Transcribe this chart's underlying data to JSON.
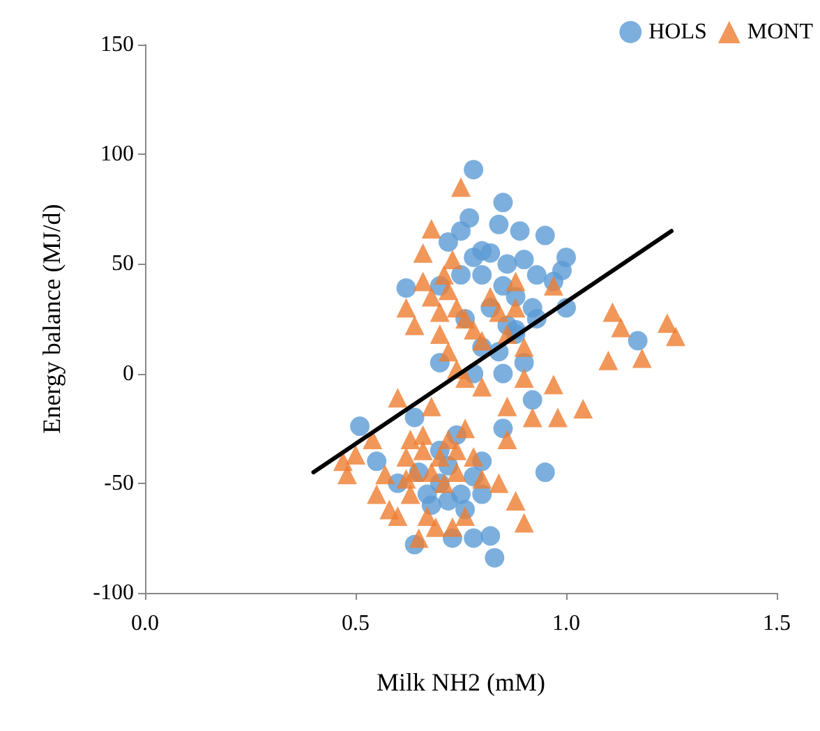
{
  "chart_data": {
    "type": "scatter",
    "xlabel": "Milk NH2 (mM)",
    "ylabel": "Energy balance (MJ/d)",
    "xlim": [
      0,
      1.5
    ],
    "xticks": [
      {
        "value": 0,
        "label": "0.0"
      },
      {
        "value": 0.5,
        "label": "0.5"
      },
      {
        "value": 1,
        "label": "1.0"
      },
      {
        "value": 1.5,
        "label": "1.5"
      }
    ],
    "ylim": [
      -100,
      150
    ],
    "yticks": [
      -100,
      -50,
      0,
      50,
      100,
      150
    ],
    "grid": false,
    "legend": "top right",
    "series": [
      {
        "name": "HOLS",
        "color": "#5b9bd5",
        "marker": "circle",
        "x": [
          0.78,
          0.85,
          0.77,
          0.84,
          0.75,
          0.89,
          0.95,
          0.72,
          0.8,
          0.82,
          0.78,
          0.86,
          0.9,
          1.0,
          0.99,
          0.93,
          0.75,
          0.8,
          0.85,
          0.97,
          0.62,
          0.7,
          0.88,
          0.92,
          1.0,
          0.82,
          0.76,
          0.93,
          0.86,
          0.88,
          1.17,
          0.8,
          0.9,
          0.85,
          0.7,
          0.85,
          0.92,
          0.95,
          0.51,
          0.64,
          0.8,
          0.78,
          0.7,
          0.75,
          0.72,
          0.8,
          0.76,
          0.68,
          0.73,
          0.78,
          0.82,
          0.64,
          0.83,
          0.6,
          0.65,
          0.7,
          0.72,
          0.67,
          0.55,
          0.74,
          0.88,
          0.84,
          0.78
        ],
        "values": [
          93,
          78,
          71,
          68,
          65,
          65,
          63,
          60,
          56,
          55,
          53,
          50,
          52,
          53,
          47,
          45,
          45,
          45,
          40,
          42,
          39,
          40,
          35,
          30,
          30,
          30,
          25,
          25,
          22,
          18,
          15,
          12,
          5,
          0,
          5,
          -25,
          -12,
          -45,
          -24,
          -20,
          -40,
          -47,
          -50,
          -55,
          -58,
          -55,
          -62,
          -60,
          -75,
          -75,
          -74,
          -78,
          -84,
          -50,
          -45,
          -35,
          -42,
          -55,
          -40,
          -28,
          20,
          10,
          0
        ]
      },
      {
        "name": "MONT",
        "color": "#ed7d31",
        "marker": "triangle",
        "x": [
          0.75,
          0.68,
          0.66,
          0.73,
          0.71,
          0.66,
          0.62,
          0.64,
          0.68,
          0.7,
          0.72,
          0.74,
          0.76,
          0.78,
          0.8,
          0.82,
          0.84,
          0.86,
          0.88,
          0.9,
          0.7,
          0.72,
          0.74,
          0.76,
          0.8,
          0.68,
          0.86,
          0.92,
          0.9,
          0.97,
          0.98,
          1.04,
          1.11,
          1.13,
          1.1,
          1.18,
          1.24,
          1.26,
          0.97,
          0.88,
          0.6,
          0.63,
          0.54,
          0.5,
          0.47,
          0.48,
          0.55,
          0.57,
          0.58,
          0.6,
          0.62,
          0.64,
          0.66,
          0.68,
          0.7,
          0.72,
          0.74,
          0.76,
          0.63,
          0.67,
          0.69,
          0.73,
          0.76,
          0.65,
          0.8,
          0.84,
          0.88,
          0.9,
          0.86,
          0.78,
          0.66,
          0.71,
          0.62,
          0.74
        ],
        "values": [
          85,
          66,
          55,
          52,
          45,
          42,
          30,
          22,
          35,
          28,
          38,
          30,
          25,
          20,
          15,
          35,
          28,
          18,
          30,
          12,
          18,
          10,
          2,
          -2,
          -6,
          -15,
          -15,
          -20,
          -2,
          -5,
          -20,
          -16,
          28,
          21,
          6,
          7,
          23,
          17,
          40,
          42,
          -11,
          -30,
          -30,
          -37,
          -40,
          -46,
          -55,
          -46,
          -62,
          -65,
          -38,
          -45,
          -35,
          -45,
          -38,
          -30,
          -35,
          -25,
          -55,
          -65,
          -70,
          -70,
          -65,
          -75,
          -48,
          -50,
          -58,
          -68,
          -30,
          -38,
          -28,
          -50,
          -48,
          -45
        ]
      },
      {
        "type": "line",
        "color": "#000000",
        "marker": "none",
        "x": [
          0.4,
          1.25
        ],
        "values": [
          -45,
          65
        ]
      }
    ]
  }
}
